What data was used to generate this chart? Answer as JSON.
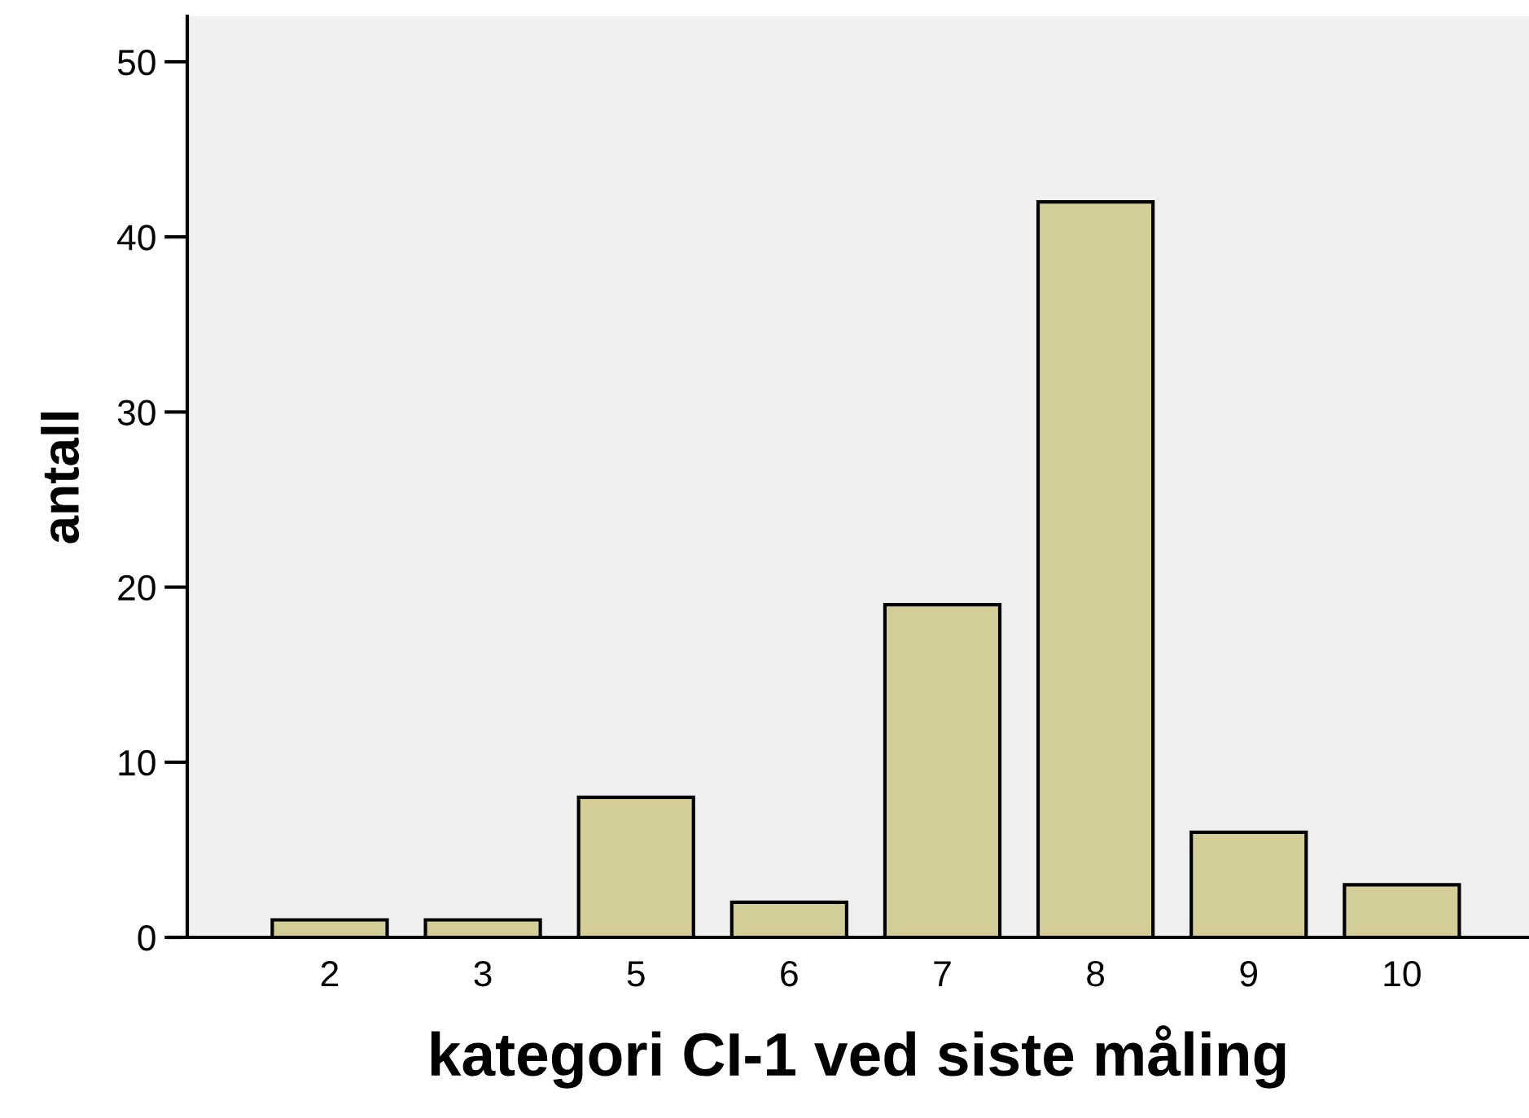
{
  "chart_data": {
    "type": "bar",
    "xlabel": "kategori CI-1 ved siste måling",
    "ylabel": "antall",
    "categories": [
      "2",
      "3",
      "5",
      "6",
      "7",
      "8",
      "9",
      "10"
    ],
    "values": [
      1,
      1,
      8,
      2,
      19,
      42,
      6,
      3
    ],
    "color": "#d3ce97",
    "ylim": [
      0,
      52.6
    ],
    "yticks": [
      0,
      10,
      20,
      30,
      40,
      50
    ],
    "grid": false,
    "legend": false
  }
}
